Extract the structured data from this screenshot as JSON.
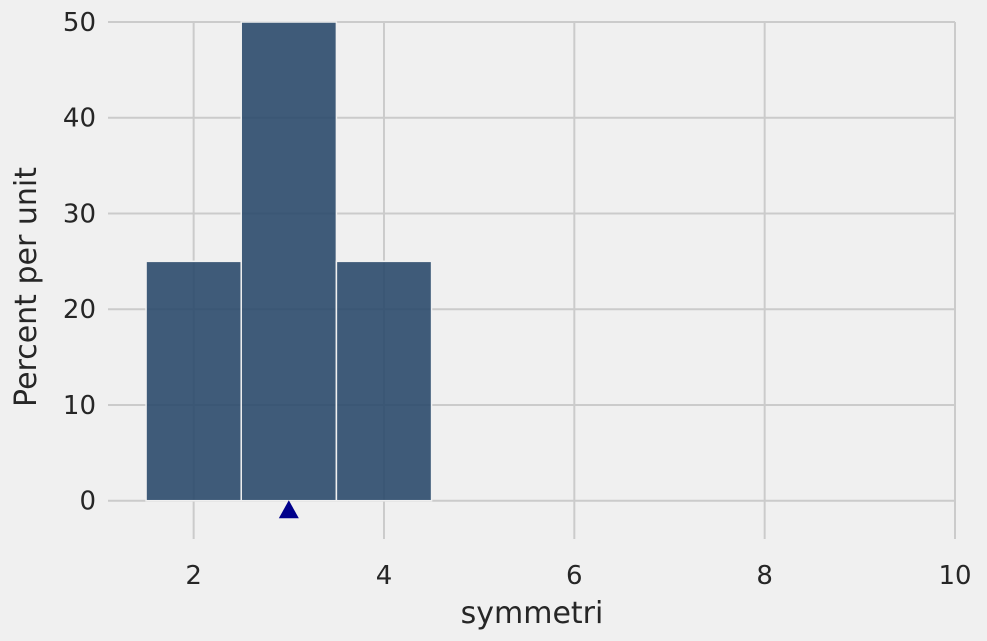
{
  "chart_data": {
    "type": "bar",
    "xlabel": "symmetri",
    "ylabel": "Percent per unit",
    "xlim": [
      1.1,
      10
    ],
    "ylim": [
      -4,
      50
    ],
    "x_ticks": [
      2,
      4,
      6,
      8,
      10
    ],
    "y_ticks": [
      0,
      10,
      20,
      30,
      40,
      50
    ],
    "bins": [
      {
        "x0": 1.5,
        "x1": 2.5,
        "value": 25
      },
      {
        "x0": 2.5,
        "x1": 3.5,
        "value": 50
      },
      {
        "x0": 3.5,
        "x1": 4.5,
        "value": 25
      }
    ],
    "marker": {
      "x": 3,
      "y": -1,
      "shape": "triangle"
    },
    "grid": true,
    "colors": {
      "bar_fill": "#2b4a6b",
      "bar_edge": "#f0f0f0",
      "marker": "#00008b",
      "grid": "#cbcbcb",
      "background": "#f0f0f0"
    }
  }
}
